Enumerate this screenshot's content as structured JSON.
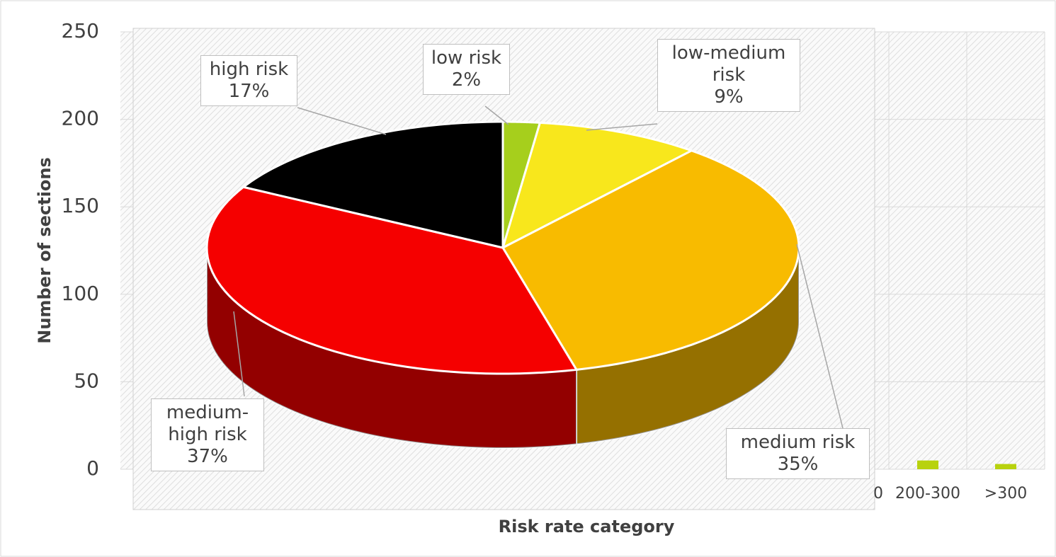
{
  "chart_data": [
    {
      "type": "bar",
      "ylabel": "Number of sections",
      "xlabel": "Risk rate category",
      "categories": [
        "0",
        "200-300",
        ">300"
      ],
      "values": [
        null,
        5,
        3
      ],
      "color": "#b8d20e",
      "ylim": [
        0,
        250
      ],
      "yticks": [
        0,
        50,
        100,
        150,
        200,
        250
      ],
      "grid": true
    },
    {
      "type": "pie",
      "categories": [
        "low risk",
        "low-medium risk",
        "medium risk",
        "medium-high risk",
        "high risk"
      ],
      "values": [
        2,
        9,
        35,
        37,
        17
      ],
      "value_labels": [
        "2%",
        "9%",
        "35%",
        "37%",
        "17%"
      ],
      "colors": [
        "#a6cf1c",
        "#f8e71c",
        "#f8bb00",
        "#f50000",
        "#000000"
      ]
    }
  ]
}
